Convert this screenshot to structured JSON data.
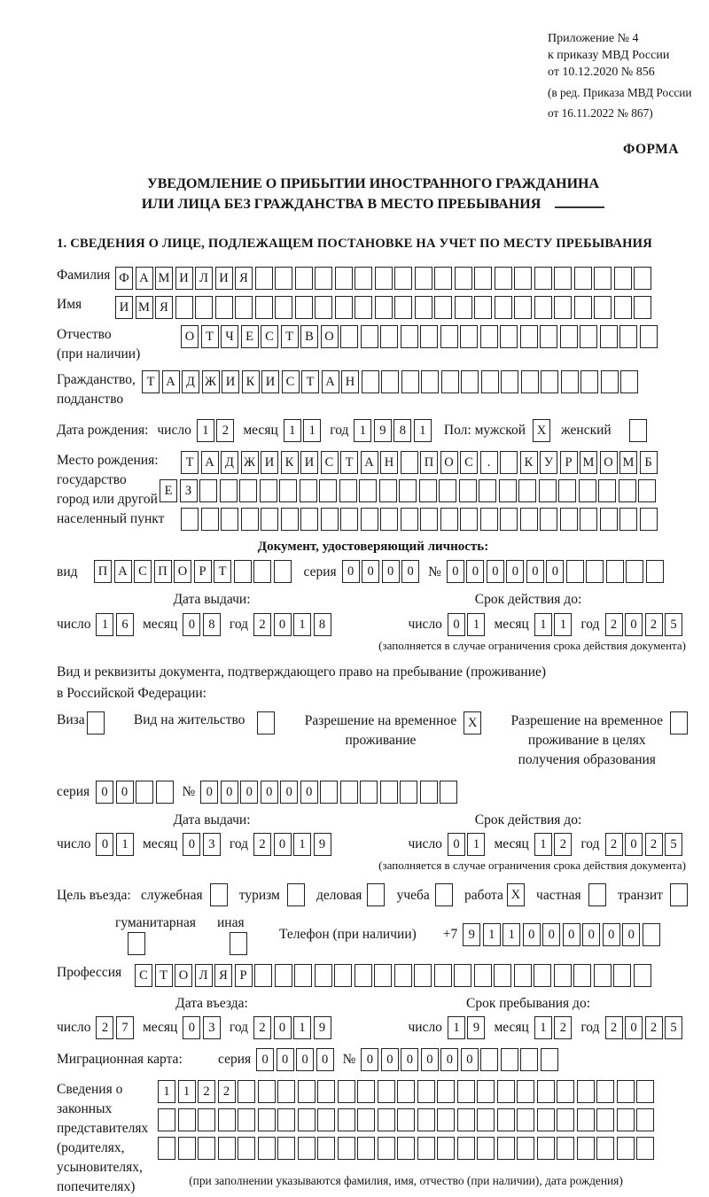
{
  "header": {
    "annex_lines": [
      "Приложение № 4",
      "к приказу МВД России",
      "от 10.12.2020 № 856"
    ],
    "edition_lines": [
      "(в ред. Приказа МВД России",
      "от 16.11.2022 № 867)"
    ],
    "form_label": "ФОРМА"
  },
  "title": {
    "line1": "УВЕДОМЛЕНИЕ О ПРИБЫТИИ ИНОСТРАННОГО ГРАЖДАНИНА",
    "line2": "ИЛИ ЛИЦА БЕЗ ГРАЖДАНСТВА В МЕСТО ПРЕБЫВАНИЯ"
  },
  "section1_heading": "1. СВЕДЕНИЯ О ЛИЦЕ, ПОДЛЕЖАЩЕМ ПОСТАНОВКЕ НА УЧЕТ ПО МЕСТУ ПРЕБЫВАНИЯ",
  "labels": {
    "day": "число",
    "month": "месяц",
    "year": "год",
    "series": "серия",
    "number": "№",
    "issue_date": "Дата выдачи:",
    "valid_until": "Срок действия до:",
    "entry_date": "Дата въезда:",
    "stay_until": "Срок пребывания до:",
    "validity_note": "(заполняется в случае ограничения срока действия документа)"
  },
  "person": {
    "surname": {
      "label": "Фамилия",
      "value": "ФАМИЛИЯ"
    },
    "name": {
      "label": "Имя",
      "value": "ИМЯ"
    },
    "patronymic": {
      "label": "Отчество",
      "label2": "(при наличии)",
      "value": "ОТЧЕСТВО"
    },
    "citizenship": {
      "label": "Гражданство,",
      "label2": "подданство",
      "value": "ТАДЖИКИСТАН"
    },
    "birth_date": {
      "label": "Дата рождения:",
      "day": "12",
      "month": "11",
      "year": "1981"
    },
    "sex": {
      "label": "Пол:",
      "male_label": "мужской",
      "male_value": "X",
      "female_label": "женский",
      "female_value": ""
    },
    "birth_place": {
      "label_lines": [
        "Место рождения:",
        "государство",
        "город или другой",
        "населенный пункт"
      ],
      "rows": [
        "ТАДЖИКИСТАН ПОС. КУРМОМБ",
        "ЕЗ",
        ""
      ]
    }
  },
  "identity_doc": {
    "heading": "Документ, удостоверяющий личность:",
    "type_label": "вид",
    "type_value": "ПАСПОРТ",
    "series": "0000",
    "number": "000000",
    "issue": {
      "day": "16",
      "month": "08",
      "year": "2018"
    },
    "valid_until": {
      "day": "01",
      "month": "11",
      "year": "2025"
    }
  },
  "residence_doc": {
    "intro_line1": "Вид и реквизиты документа, подтверждающего право на пребывание (проживание)",
    "intro_line2": "в Российской Федерации:",
    "visa": {
      "label": "Виза",
      "value": ""
    },
    "residence_permit": {
      "label": "Вид на жительство",
      "value": ""
    },
    "temp_permit": {
      "line1": "Разрешение на временное",
      "line2": "проживание",
      "value": "X"
    },
    "temp_permit_edu": {
      "line1": "Разрешение на временное",
      "line2": "проживание в целях",
      "line3": "получения образования",
      "value": ""
    },
    "series": "00",
    "number": "000000",
    "issue": {
      "day": "01",
      "month": "03",
      "year": "2019"
    },
    "valid_until": {
      "day": "01",
      "month": "12",
      "year": "2025"
    }
  },
  "entry": {
    "purpose_label": "Цель въезда:",
    "purposes": [
      {
        "label": "служебная",
        "value": ""
      },
      {
        "label": "туризм",
        "value": ""
      },
      {
        "label": "деловая",
        "value": ""
      },
      {
        "label": "учеба",
        "value": ""
      },
      {
        "label": "работа",
        "value": "X"
      },
      {
        "label": "частная",
        "value": ""
      },
      {
        "label": "транзит",
        "value": ""
      },
      {
        "label": "гуманитарная",
        "value": ""
      },
      {
        "label": "иная",
        "value": ""
      }
    ],
    "phone_label": "Телефон (при наличии)",
    "phone_prefix": "+7",
    "phone": "911000000",
    "profession_label": "Профессия",
    "profession_value": "СТОЛЯР",
    "entry_date": {
      "day": "27",
      "month": "03",
      "year": "2019"
    },
    "stay_until": {
      "day": "19",
      "month": "12",
      "year": "2025"
    }
  },
  "migration_card": {
    "label": "Миграционная карта:",
    "series": "0000",
    "number": "000000"
  },
  "legal_reps": {
    "label_lines": [
      "Сведения о",
      "законных",
      "представителях",
      "(родителях,",
      "усыновителях,",
      "попечителях)"
    ],
    "rows": [
      "1122",
      "",
      ""
    ],
    "note": "(при заполнении указываются фамилия, имя, отчество (при наличии), дата рождения)"
  }
}
